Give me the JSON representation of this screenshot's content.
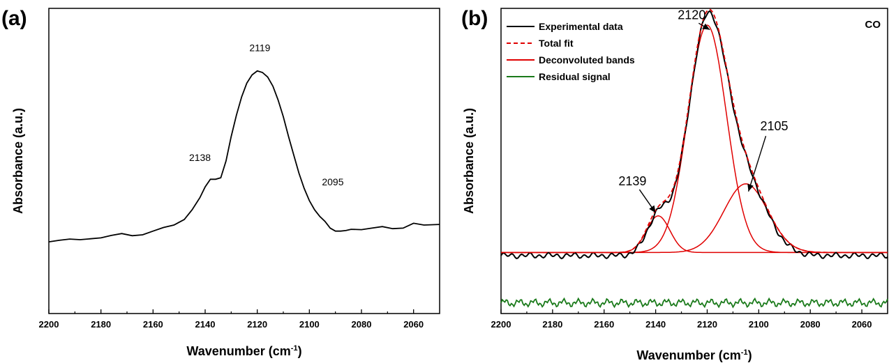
{
  "chart_data": [
    {
      "panel": "(a)",
      "type": "line",
      "xlabel": "Wavenumber (cm",
      "xlabel_sup": "-1",
      "xlabel_close": ")",
      "ylabel": "Absorbance (a.u.)",
      "xlim": [
        2200,
        2050
      ],
      "ylim": [
        0,
        1
      ],
      "x_reversed": true,
      "x_ticks": [
        "2200",
        "2180",
        "2160",
        "2140",
        "2120",
        "2100",
        "2080",
        "2060"
      ],
      "y_ticks_shown": false,
      "series": [
        {
          "color": "#000000",
          "points": [
            [
              2200,
              0.235
            ],
            [
              2196,
              0.24
            ],
            [
              2192,
              0.244
            ],
            [
              2188,
              0.242
            ],
            [
              2184,
              0.245
            ],
            [
              2180,
              0.248
            ],
            [
              2176,
              0.256
            ],
            [
              2172,
              0.262
            ],
            [
              2168,
              0.255
            ],
            [
              2164,
              0.258
            ],
            [
              2160,
              0.27
            ],
            [
              2156,
              0.282
            ],
            [
              2152,
              0.29
            ],
            [
              2148,
              0.308
            ],
            [
              2145,
              0.34
            ],
            [
              2142,
              0.38
            ],
            [
              2140,
              0.415
            ],
            [
              2138,
              0.44
            ],
            [
              2136,
              0.44
            ],
            [
              2134,
              0.445
            ],
            [
              2132,
              0.5
            ],
            [
              2130,
              0.58
            ],
            [
              2128,
              0.65
            ],
            [
              2126,
              0.71
            ],
            [
              2124,
              0.755
            ],
            [
              2122,
              0.782
            ],
            [
              2120,
              0.795
            ],
            [
              2118,
              0.79
            ],
            [
              2116,
              0.775
            ],
            [
              2114,
              0.745
            ],
            [
              2112,
              0.7
            ],
            [
              2110,
              0.645
            ],
            [
              2108,
              0.58
            ],
            [
              2106,
              0.52
            ],
            [
              2104,
              0.46
            ],
            [
              2102,
              0.41
            ],
            [
              2100,
              0.37
            ],
            [
              2098,
              0.34
            ],
            [
              2096,
              0.318
            ],
            [
              2094,
              0.302
            ],
            [
              2092,
              0.28
            ],
            [
              2090,
              0.27
            ],
            [
              2088,
              0.27
            ],
            [
              2086,
              0.272
            ],
            [
              2084,
              0.276
            ],
            [
              2080,
              0.275
            ],
            [
              2076,
              0.28
            ],
            [
              2072,
              0.285
            ],
            [
              2068,
              0.278
            ],
            [
              2064,
              0.28
            ],
            [
              2060,
              0.296
            ],
            [
              2056,
              0.29
            ],
            [
              2050,
              0.292
            ]
          ]
        }
      ],
      "annotations": [
        {
          "text": "2119",
          "x": 2119,
          "y": 0.86
        },
        {
          "text": "2138",
          "x": 2142,
          "y": 0.5
        },
        {
          "text": "2095",
          "x": 2091,
          "y": 0.42
        }
      ]
    },
    {
      "panel": "(b)",
      "type": "line",
      "corner_label": "CO",
      "xlabel": "Wavenumber (cm",
      "xlabel_sup": "-1",
      "xlabel_close": ")",
      "ylabel": "Absorbance (a.u.)",
      "xlim": [
        2200,
        2050
      ],
      "ylim": [
        0,
        1
      ],
      "x_reversed": true,
      "x_ticks": [
        "2200",
        "2180",
        "2160",
        "2140",
        "2120",
        "2100",
        "2080",
        "2060"
      ],
      "y_ticks_shown": false,
      "legend": {
        "placement": "top-left",
        "entries": [
          {
            "label": "Experimental data",
            "color": "#000000",
            "style": "solid"
          },
          {
            "label": "Total fit",
            "color": "#e00000",
            "style": "dashed"
          },
          {
            "label": "Deconvoluted bands",
            "color": "#e00000",
            "style": "solid"
          },
          {
            "label": "Residual signal",
            "color": "#1a7a1a",
            "style": "solid"
          }
        ]
      },
      "baseline": 0.2,
      "bands": [
        {
          "center": 2139,
          "height": 0.12,
          "sigma": 4.5,
          "color": "#e00000"
        },
        {
          "center": 2120,
          "height": 0.745,
          "sigma": 7.5,
          "color": "#e00000"
        },
        {
          "center": 2105,
          "height": 0.225,
          "sigma": 8.5,
          "color": "#e00000"
        }
      ],
      "residual_level": 0.035,
      "annotations": [
        {
          "text": "2120",
          "x": 2126,
          "y": 0.965,
          "arrow_to": [
            2119,
            0.93
          ]
        },
        {
          "text": "2105",
          "x": 2094,
          "y": 0.6,
          "arrow_to": [
            2104,
            0.4
          ]
        },
        {
          "text": "2139",
          "x": 2149,
          "y": 0.42,
          "arrow_to": [
            2140,
            0.33
          ]
        }
      ]
    }
  ]
}
